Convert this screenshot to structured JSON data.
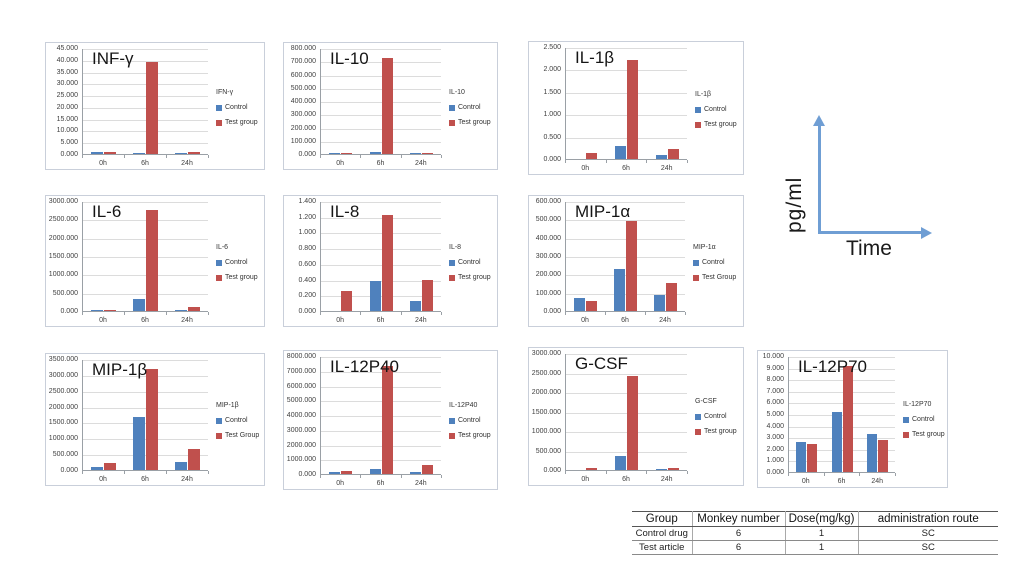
{
  "figure": {
    "y_axis_label": "pg/ml",
    "x_axis_label": "Time",
    "arrow_color": "#6f9ed4"
  },
  "colors": {
    "control_bar": "#4f81bd",
    "test_bar": "#c0504d",
    "gridline": "#dcdcdc",
    "panel_border": "#c9cfda"
  },
  "chart_data": [
    {
      "type": "bar",
      "id": "inf-gamma",
      "title": "INF-γ",
      "legend_title": "IFN-γ",
      "categories": [
        "0h",
        "6h",
        "24h"
      ],
      "series": [
        {
          "name": "Control",
          "color": "#4f81bd",
          "values": [
            0.9,
            0.5,
            0.5
          ]
        },
        {
          "name": "Test group",
          "color": "#c0504d",
          "values": [
            0.8,
            39.2,
            1.0
          ]
        }
      ],
      "ylim": [
        0,
        45
      ],
      "ytick_step": 5,
      "grid": true,
      "legend_position": "right"
    },
    {
      "type": "bar",
      "id": "il-10",
      "title": "IL-10",
      "legend_title": "IL-10",
      "categories": [
        "0h",
        "6h",
        "24h"
      ],
      "series": [
        {
          "name": "Control",
          "color": "#4f81bd",
          "values": [
            1,
            13,
            2
          ]
        },
        {
          "name": "Test group",
          "color": "#c0504d",
          "values": [
            1,
            728,
            8
          ]
        }
      ],
      "ylim": [
        0,
        800
      ],
      "ytick_step": 100,
      "grid": true,
      "legend_position": "right"
    },
    {
      "type": "bar",
      "id": "il-1b",
      "title": "IL-1β",
      "legend_title": "IL-1β",
      "categories": [
        "0h",
        "6h",
        "24h"
      ],
      "series": [
        {
          "name": "Control",
          "color": "#4f81bd",
          "values": [
            0,
            0.29,
            0.1
          ]
        },
        {
          "name": "Test group",
          "color": "#c0504d",
          "values": [
            0.13,
            2.2,
            0.22
          ]
        }
      ],
      "ylim": [
        0,
        2.5
      ],
      "ytick_step": 0.5,
      "grid": true,
      "legend_position": "right"
    },
    {
      "type": "bar",
      "id": "il-6",
      "title": "IL-6",
      "legend_title": "IL-6",
      "categories": [
        "0h",
        "6h",
        "24h"
      ],
      "series": [
        {
          "name": "Control",
          "color": "#4f81bd",
          "values": [
            3,
            340,
            4
          ]
        },
        {
          "name": "Test group",
          "color": "#c0504d",
          "values": [
            4,
            2750,
            120
          ]
        }
      ],
      "ylim": [
        0,
        3000
      ],
      "ytick_step": 500,
      "grid": true,
      "legend_position": "right"
    },
    {
      "type": "bar",
      "id": "il-8",
      "title": "IL-8",
      "legend_title": "IL-8",
      "categories": [
        "0h",
        "6h",
        "24h"
      ],
      "series": [
        {
          "name": "Control",
          "color": "#4f81bd",
          "values": [
            0,
            0.38,
            0.13
          ]
        },
        {
          "name": "Test group",
          "color": "#c0504d",
          "values": [
            0.26,
            1.22,
            0.4
          ]
        }
      ],
      "ylim": [
        0,
        1.4
      ],
      "ytick_step": 0.2,
      "grid": true,
      "legend_position": "right"
    },
    {
      "type": "bar",
      "id": "mip-1a",
      "title": "MIP-1α",
      "legend_title": "MIP-1α",
      "categories": [
        "0h",
        "6h",
        "24h"
      ],
      "series": [
        {
          "name": "Control",
          "color": "#4f81bd",
          "values": [
            70,
            227,
            87
          ]
        },
        {
          "name": "Test Group",
          "color": "#c0504d",
          "values": [
            57,
            492,
            152
          ]
        }
      ],
      "ylim": [
        0,
        600
      ],
      "ytick_step": 100,
      "grid": true,
      "legend_position": "right"
    },
    {
      "type": "bar",
      "id": "mip-1b",
      "title": "MIP-1β",
      "legend_title": "MIP-1β",
      "categories": [
        "0h",
        "6h",
        "24h"
      ],
      "series": [
        {
          "name": "Control",
          "color": "#4f81bd",
          "values": [
            100,
            1660,
            240
          ]
        },
        {
          "name": "Test Group",
          "color": "#c0504d",
          "values": [
            220,
            3180,
            660
          ]
        }
      ],
      "ylim": [
        0,
        3500
      ],
      "ytick_step": 500,
      "grid": true,
      "legend_position": "right"
    },
    {
      "type": "bar",
      "id": "il-12p40",
      "title": "IL-12P40",
      "legend_title": "IL-12P40",
      "categories": [
        "0h",
        "6h",
        "24h"
      ],
      "series": [
        {
          "name": "Control",
          "color": "#4f81bd",
          "values": [
            110,
            320,
            120
          ]
        },
        {
          "name": "Test group",
          "color": "#c0504d",
          "values": [
            190,
            7300,
            640
          ]
        }
      ],
      "ylim": [
        0,
        8000
      ],
      "ytick_step": 1000,
      "grid": true,
      "legend_position": "right"
    },
    {
      "type": "bar",
      "id": "g-csf",
      "title": "G-CSF",
      "legend_title": "G-CSF",
      "categories": [
        "0h",
        "6h",
        "24h"
      ],
      "series": [
        {
          "name": "Control",
          "color": "#4f81bd",
          "values": [
            0,
            350,
            30
          ]
        },
        {
          "name": "Test group",
          "color": "#c0504d",
          "values": [
            40,
            2400,
            60
          ]
        }
      ],
      "ylim": [
        0,
        3000
      ],
      "ytick_step": 500,
      "grid": true,
      "legend_position": "right"
    },
    {
      "type": "bar",
      "id": "il-12p70",
      "title": "IL-12P70",
      "legend_title": "IL-12P70",
      "categories": [
        "0h",
        "6h",
        "24h"
      ],
      "series": [
        {
          "name": "Control",
          "color": "#4f81bd",
          "values": [
            2.6,
            5.15,
            3.3
          ]
        },
        {
          "name": "Test group",
          "color": "#c0504d",
          "values": [
            2.45,
            9.1,
            2.8
          ]
        }
      ],
      "ylim": [
        0,
        10
      ],
      "ytick_step": 1,
      "grid": true,
      "legend_position": "right"
    }
  ],
  "table": {
    "headers": [
      "Group",
      "Monkey number",
      "Dose(mg/kg)",
      "administration route"
    ],
    "rows": [
      [
        "Control drug",
        "6",
        "1",
        "SC"
      ],
      [
        "Test article",
        "6",
        "1",
        "SC"
      ]
    ]
  }
}
